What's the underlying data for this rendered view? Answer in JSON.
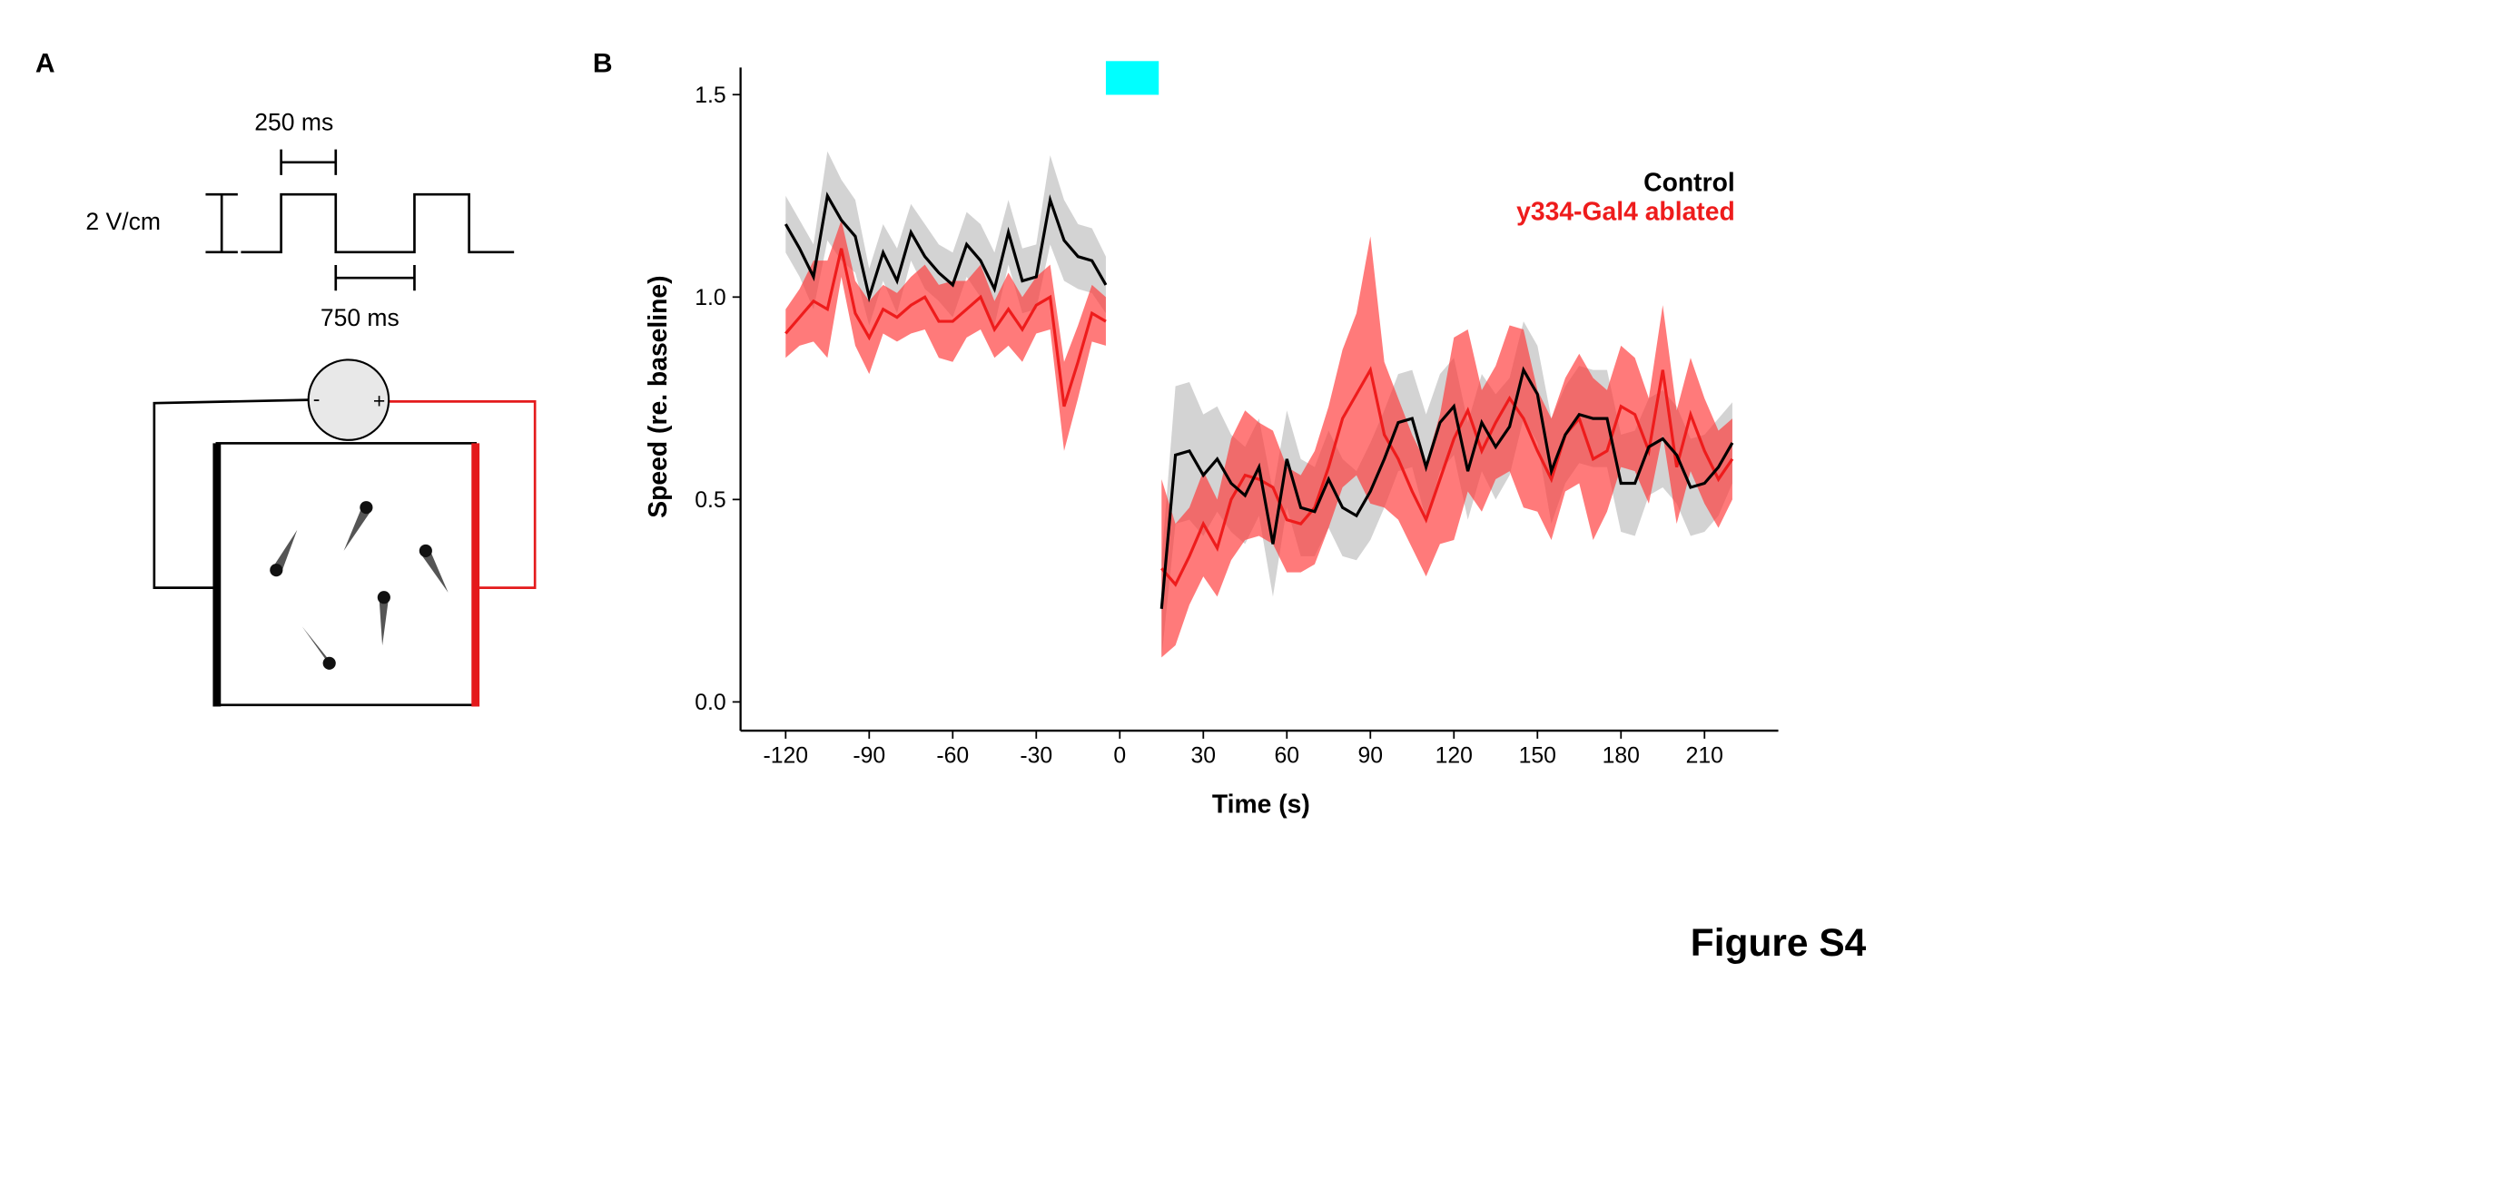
{
  "figure_label": "Figure S4",
  "panel_a": {
    "label": "A",
    "pulse_width": "250 ms",
    "field_strength": "2 V/cm",
    "interval": "750 ms",
    "minus": "-",
    "plus": "+"
  },
  "panel_b": {
    "label": "B"
  },
  "chart_data": {
    "type": "line",
    "x_label": "Time (s)",
    "y_label": "Speed (re. baseline)",
    "x": [
      -120,
      -115,
      -110,
      -105,
      -100,
      -95,
      -90,
      -85,
      -80,
      -75,
      -70,
      -65,
      -60,
      -55,
      -50,
      -45,
      -40,
      -35,
      -30,
      -25,
      -20,
      -15,
      -10,
      -5,
      0,
      5,
      10,
      15,
      20,
      25,
      30,
      35,
      40,
      45,
      50,
      55,
      60,
      65,
      70,
      75,
      80,
      85,
      90,
      95,
      100,
      105,
      110,
      115,
      120,
      125,
      130,
      135,
      140,
      145,
      150,
      155,
      160,
      165,
      170,
      175,
      180,
      185,
      190,
      195,
      200,
      205,
      210,
      215,
      220
    ],
    "xlim": [
      -136.2,
      236.5
    ],
    "xticks": [
      -120,
      -90,
      -60,
      -30,
      0,
      30,
      60,
      90,
      120,
      150,
      180,
      210
    ],
    "ylim": [
      -0.071,
      1.567
    ],
    "yticks": [
      {
        "value": 0,
        "label": "0.0"
      },
      0.5,
      {
        "value": 1,
        "label": "1.0"
      },
      1.5
    ],
    "stimulus_window": [
      -5,
      14
    ],
    "stimulus_color": "#00ffff",
    "legend": "top-right",
    "series": [
      {
        "name": "Control",
        "color": "#000000",
        "band_color": "#c8c8c8",
        "values": [
          1.18,
          1.12,
          1.05,
          1.25,
          1.19,
          1.15,
          1.0,
          1.11,
          1.04,
          1.16,
          1.1,
          1.06,
          1.03,
          1.13,
          1.09,
          1.02,
          1.16,
          1.04,
          1.05,
          1.24,
          1.14,
          1.1,
          1.09,
          1.03,
          null,
          null,
          null,
          0.23,
          0.61,
          0.62,
          0.56,
          0.6,
          0.54,
          0.51,
          0.58,
          0.39,
          0.6,
          0.48,
          0.47,
          0.55,
          0.48,
          0.46,
          0.52,
          0.6,
          0.69,
          0.7,
          0.58,
          0.69,
          0.73,
          0.57,
          0.69,
          0.63,
          0.68,
          0.82,
          0.76,
          0.57,
          0.66,
          0.71,
          0.7,
          0.7,
          0.54,
          0.54,
          0.63,
          0.65,
          0.61,
          0.53,
          0.54,
          0.58,
          0.64
        ],
        "errors": [
          0.07,
          0.07,
          0.08,
          0.11,
          0.1,
          0.09,
          0.07,
          0.07,
          0.08,
          0.07,
          0.08,
          0.07,
          0.08,
          0.08,
          0.09,
          0.09,
          0.08,
          0.08,
          0.08,
          0.11,
          0.1,
          0.08,
          0.08,
          0.07,
          null,
          null,
          null,
          0.12,
          0.17,
          0.17,
          0.15,
          0.13,
          0.12,
          0.12,
          0.12,
          0.13,
          0.12,
          0.12,
          0.11,
          0.12,
          0.12,
          0.11,
          0.12,
          0.12,
          0.12,
          0.12,
          0.13,
          0.12,
          0.12,
          0.12,
          0.12,
          0.13,
          0.12,
          0.12,
          0.12,
          0.13,
          0.12,
          0.12,
          0.12,
          0.12,
          0.12,
          0.13,
          0.12,
          0.12,
          0.12,
          0.12,
          0.12,
          0.12,
          0.1
        ]
      },
      {
        "name": "y334-Gal4 ablated",
        "color": "#ee1c1c",
        "band_color": "#ff3333",
        "values": [
          0.91,
          0.95,
          0.99,
          0.97,
          1.12,
          0.96,
          0.9,
          0.97,
          0.95,
          0.98,
          1.0,
          0.94,
          0.94,
          0.97,
          1.0,
          0.92,
          0.97,
          0.92,
          0.98,
          1.0,
          0.73,
          0.84,
          0.96,
          0.94,
          null,
          null,
          null,
          0.33,
          0.29,
          0.36,
          0.44,
          0.38,
          0.5,
          0.56,
          0.55,
          0.53,
          0.45,
          0.44,
          0.48,
          0.58,
          0.7,
          0.76,
          0.82,
          0.66,
          0.6,
          0.52,
          0.45,
          0.55,
          0.65,
          0.72,
          0.62,
          0.69,
          0.75,
          0.7,
          0.62,
          0.55,
          0.66,
          0.7,
          0.6,
          0.62,
          0.73,
          0.71,
          0.62,
          0.82,
          0.58,
          0.71,
          0.62,
          0.55,
          0.6
        ],
        "errors": [
          0.06,
          0.07,
          0.1,
          0.12,
          0.07,
          0.08,
          0.09,
          0.06,
          0.06,
          0.07,
          0.08,
          0.09,
          0.1,
          0.07,
          0.08,
          0.07,
          0.09,
          0.08,
          0.07,
          0.08,
          0.11,
          0.09,
          0.07,
          0.06,
          null,
          null,
          null,
          0.22,
          0.15,
          0.12,
          0.13,
          0.12,
          0.15,
          0.16,
          0.14,
          0.14,
          0.13,
          0.12,
          0.14,
          0.15,
          0.17,
          0.2,
          0.33,
          0.18,
          0.15,
          0.14,
          0.14,
          0.16,
          0.25,
          0.2,
          0.15,
          0.14,
          0.18,
          0.22,
          0.15,
          0.15,
          0.14,
          0.16,
          0.2,
          0.15,
          0.15,
          0.14,
          0.13,
          0.16,
          0.14,
          0.14,
          0.13,
          0.12,
          0.1
        ]
      }
    ]
  }
}
